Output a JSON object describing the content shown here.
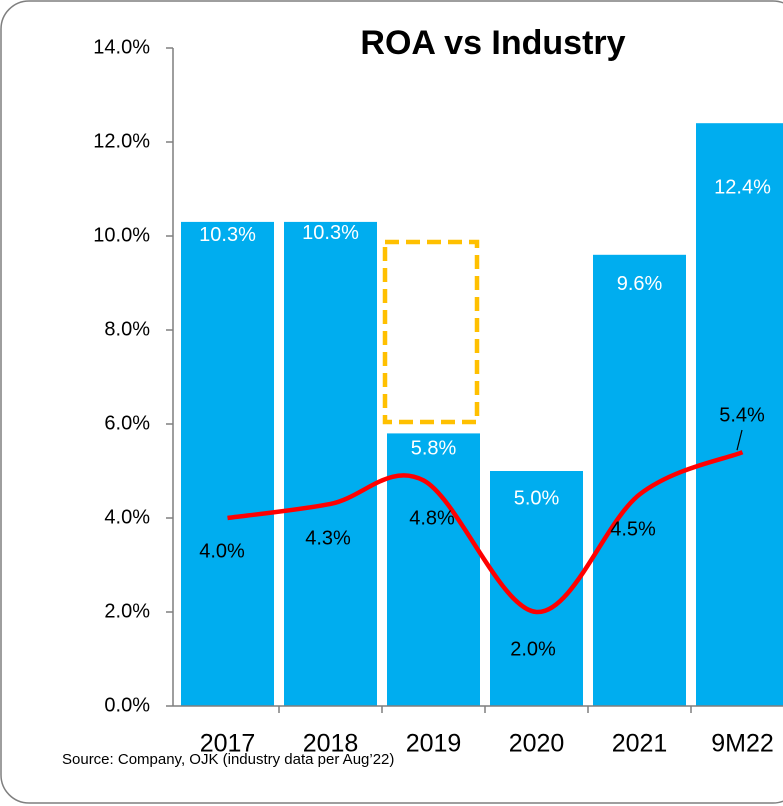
{
  "chart_data": {
    "type": "bar",
    "title": "ROA vs Industry",
    "categories": [
      "2017",
      "2018",
      "2019",
      "2020",
      "2021",
      "9M22"
    ],
    "series": [
      {
        "type": "bar",
        "color": "#00adef",
        "values": [
          10.3,
          10.3,
          5.8,
          5.0,
          9.6,
          12.4
        ],
        "value_labels": [
          "10.3%",
          "10.3%",
          "5.8%",
          "5.0%",
          "9.6%",
          "12.4%"
        ]
      },
      {
        "type": "line",
        "color": "#ff0000",
        "values": [
          4.0,
          4.3,
          4.8,
          2.0,
          4.5,
          5.4
        ],
        "value_labels": [
          "4.0%",
          "4.3%",
          "4.8%",
          "2.0%",
          "4.5%",
          "5.4%"
        ]
      }
    ],
    "ylim": [
      0,
      14
    ],
    "yticks": [
      {
        "value": 0,
        "label": "0.0%"
      },
      {
        "value": 2,
        "label": "2.0%"
      },
      {
        "value": 4,
        "label": "4.0%"
      },
      {
        "value": 6,
        "label": "6.0%"
      },
      {
        "value": 8,
        "label": "8.0%"
      },
      {
        "value": 10,
        "label": "10.0%"
      },
      {
        "value": 12,
        "label": "12.0%"
      },
      {
        "value": 14,
        "label": "14.0%"
      }
    ],
    "source": "Source: Company, OJK (industry data per Aug’22)"
  }
}
